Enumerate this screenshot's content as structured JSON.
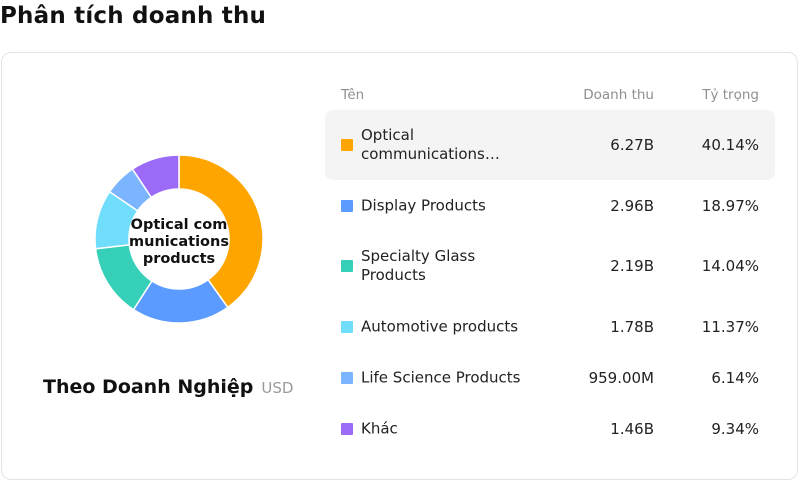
{
  "header": {
    "title": "Phân tích doanh thu"
  },
  "card": {
    "center_label": "Optical communications products",
    "subtitle": "Theo Doanh Nghiệp",
    "unit": "USD"
  },
  "table": {
    "headers": {
      "name": "Tên",
      "revenue": "Doanh thu",
      "share": "Tỷ trọng"
    },
    "rows": [
      {
        "name": "Optical communications products",
        "revenue": "6.27B",
        "share": "40.14%",
        "color": "#FFA500"
      },
      {
        "name": "Display Products",
        "revenue": "2.96B",
        "share": "18.97%",
        "color": "#5B9BFF"
      },
      {
        "name": "Specialty Glass Products",
        "revenue": "2.19B",
        "share": "14.04%",
        "color": "#36D0B8"
      },
      {
        "name": "Automotive products",
        "revenue": "1.78B",
        "share": "11.37%",
        "color": "#6FDDFB"
      },
      {
        "name": "Life Science Products",
        "revenue": "959.00M",
        "share": "6.14%",
        "color": "#7BB4FF"
      },
      {
        "name": "Khác",
        "revenue": "1.46B",
        "share": "9.34%",
        "color": "#9B6BF7"
      }
    ]
  },
  "chart_data": {
    "type": "pie",
    "donut": true,
    "categories": [
      "Optical communications products",
      "Display Products",
      "Specialty Glass Products",
      "Automotive products",
      "Life Science Products",
      "Khác"
    ],
    "values": [
      40.14,
      18.97,
      14.04,
      11.37,
      6.14,
      9.34
    ],
    "colors": [
      "#FFA500",
      "#5B9BFF",
      "#36D0B8",
      "#6FDDFB",
      "#7BB4FF",
      "#9B6BF7"
    ]
  }
}
